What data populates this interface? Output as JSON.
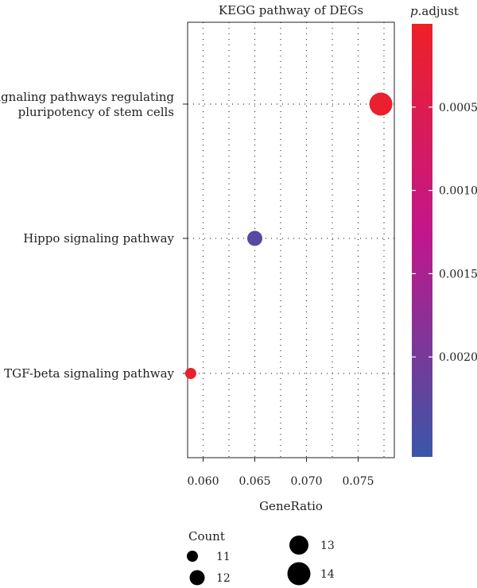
{
  "chart_data": {
    "type": "scatter",
    "title": "KEGG pathway of DEGs",
    "xlabel": "GeneRatio",
    "ylabel": "",
    "xlim": [
      0.0585,
      0.0785
    ],
    "x_ticks": [
      "0.060",
      "0.065",
      "0.070",
      "0.075"
    ],
    "x_tick_values": [
      0.06,
      0.065,
      0.07,
      0.075
    ],
    "categories": [
      "Signaling pathways regulating\npluripotency of stem cells",
      "Hippo signaling pathway",
      "TGF-beta signaling pathway"
    ],
    "points": [
      {
        "pathway": "Signaling pathways regulating pluripotency of stem cells",
        "gene_ratio": 0.0772,
        "count": 14,
        "p_adjust": 0.0001
      },
      {
        "pathway": "Hippo signaling pathway",
        "gene_ratio": 0.065,
        "count": 12,
        "p_adjust": 0.0023
      },
      {
        "pathway": "TGF-beta signaling pathway",
        "gene_ratio": 0.0588,
        "count": 11,
        "p_adjust": 0.0001
      }
    ],
    "grid": true,
    "grid_style": "dotted",
    "colorbar": {
      "title_italic": "p",
      "title_rest": ".adjust",
      "range": [
        0.0,
        0.0026
      ],
      "ticks": [
        "0.0005",
        "0.0010",
        "0.0015",
        "0.0020"
      ],
      "tick_values": [
        0.0005,
        0.001,
        0.0015,
        0.002
      ],
      "color_low": "#ee2127",
      "color_mid": "#c2168a",
      "color_high": "#3a56a7"
    },
    "size_legend": {
      "title": "Count",
      "items": [
        {
          "label": "11",
          "value": 11
        },
        {
          "label": "12",
          "value": 12
        },
        {
          "label": "13",
          "value": 13
        },
        {
          "label": "14",
          "value": 14
        }
      ]
    },
    "colors": {
      "frame": "#222222",
      "grid": "#333333"
    }
  }
}
